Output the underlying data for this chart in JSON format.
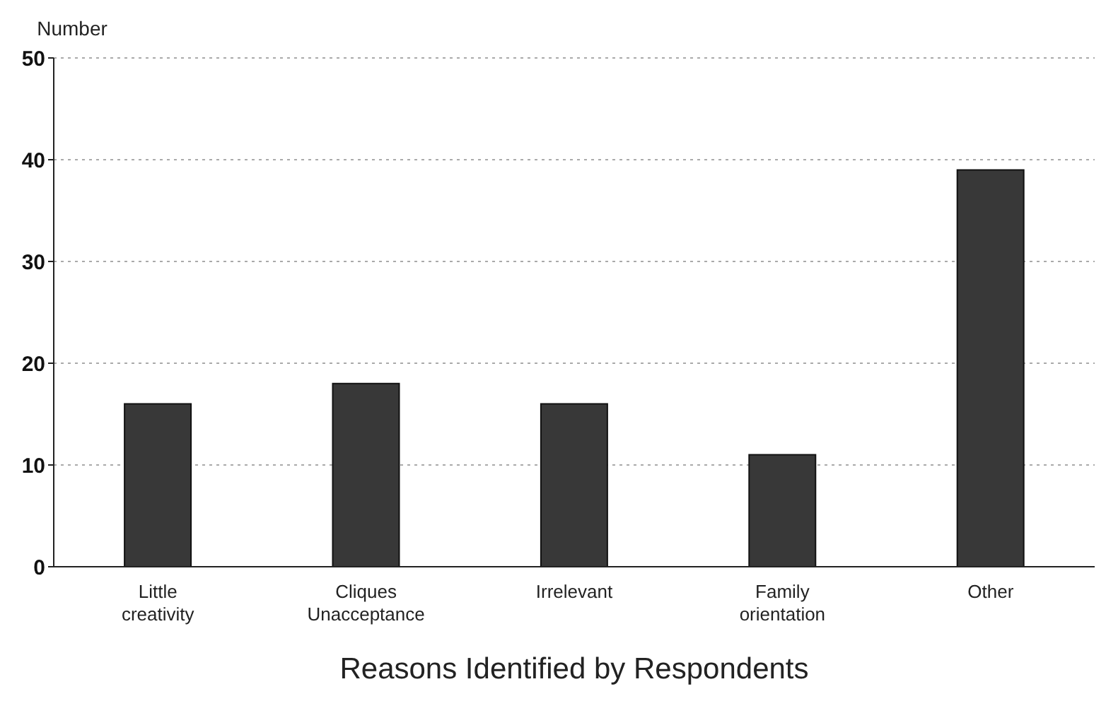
{
  "chart_data": {
    "type": "bar",
    "xlabel": "Reasons Identified by Respondents",
    "ylabel": "Number",
    "categories": [
      "Little creativity",
      "Cliques Unacceptance",
      "Irrelevant",
      "Family orientation",
      "Other"
    ],
    "values": [
      16,
      18,
      16,
      11,
      39
    ],
    "color": "#383838",
    "ylim": [
      0,
      50
    ],
    "yticks": [
      0,
      10,
      20,
      30,
      40,
      50
    ],
    "grid": "y"
  }
}
